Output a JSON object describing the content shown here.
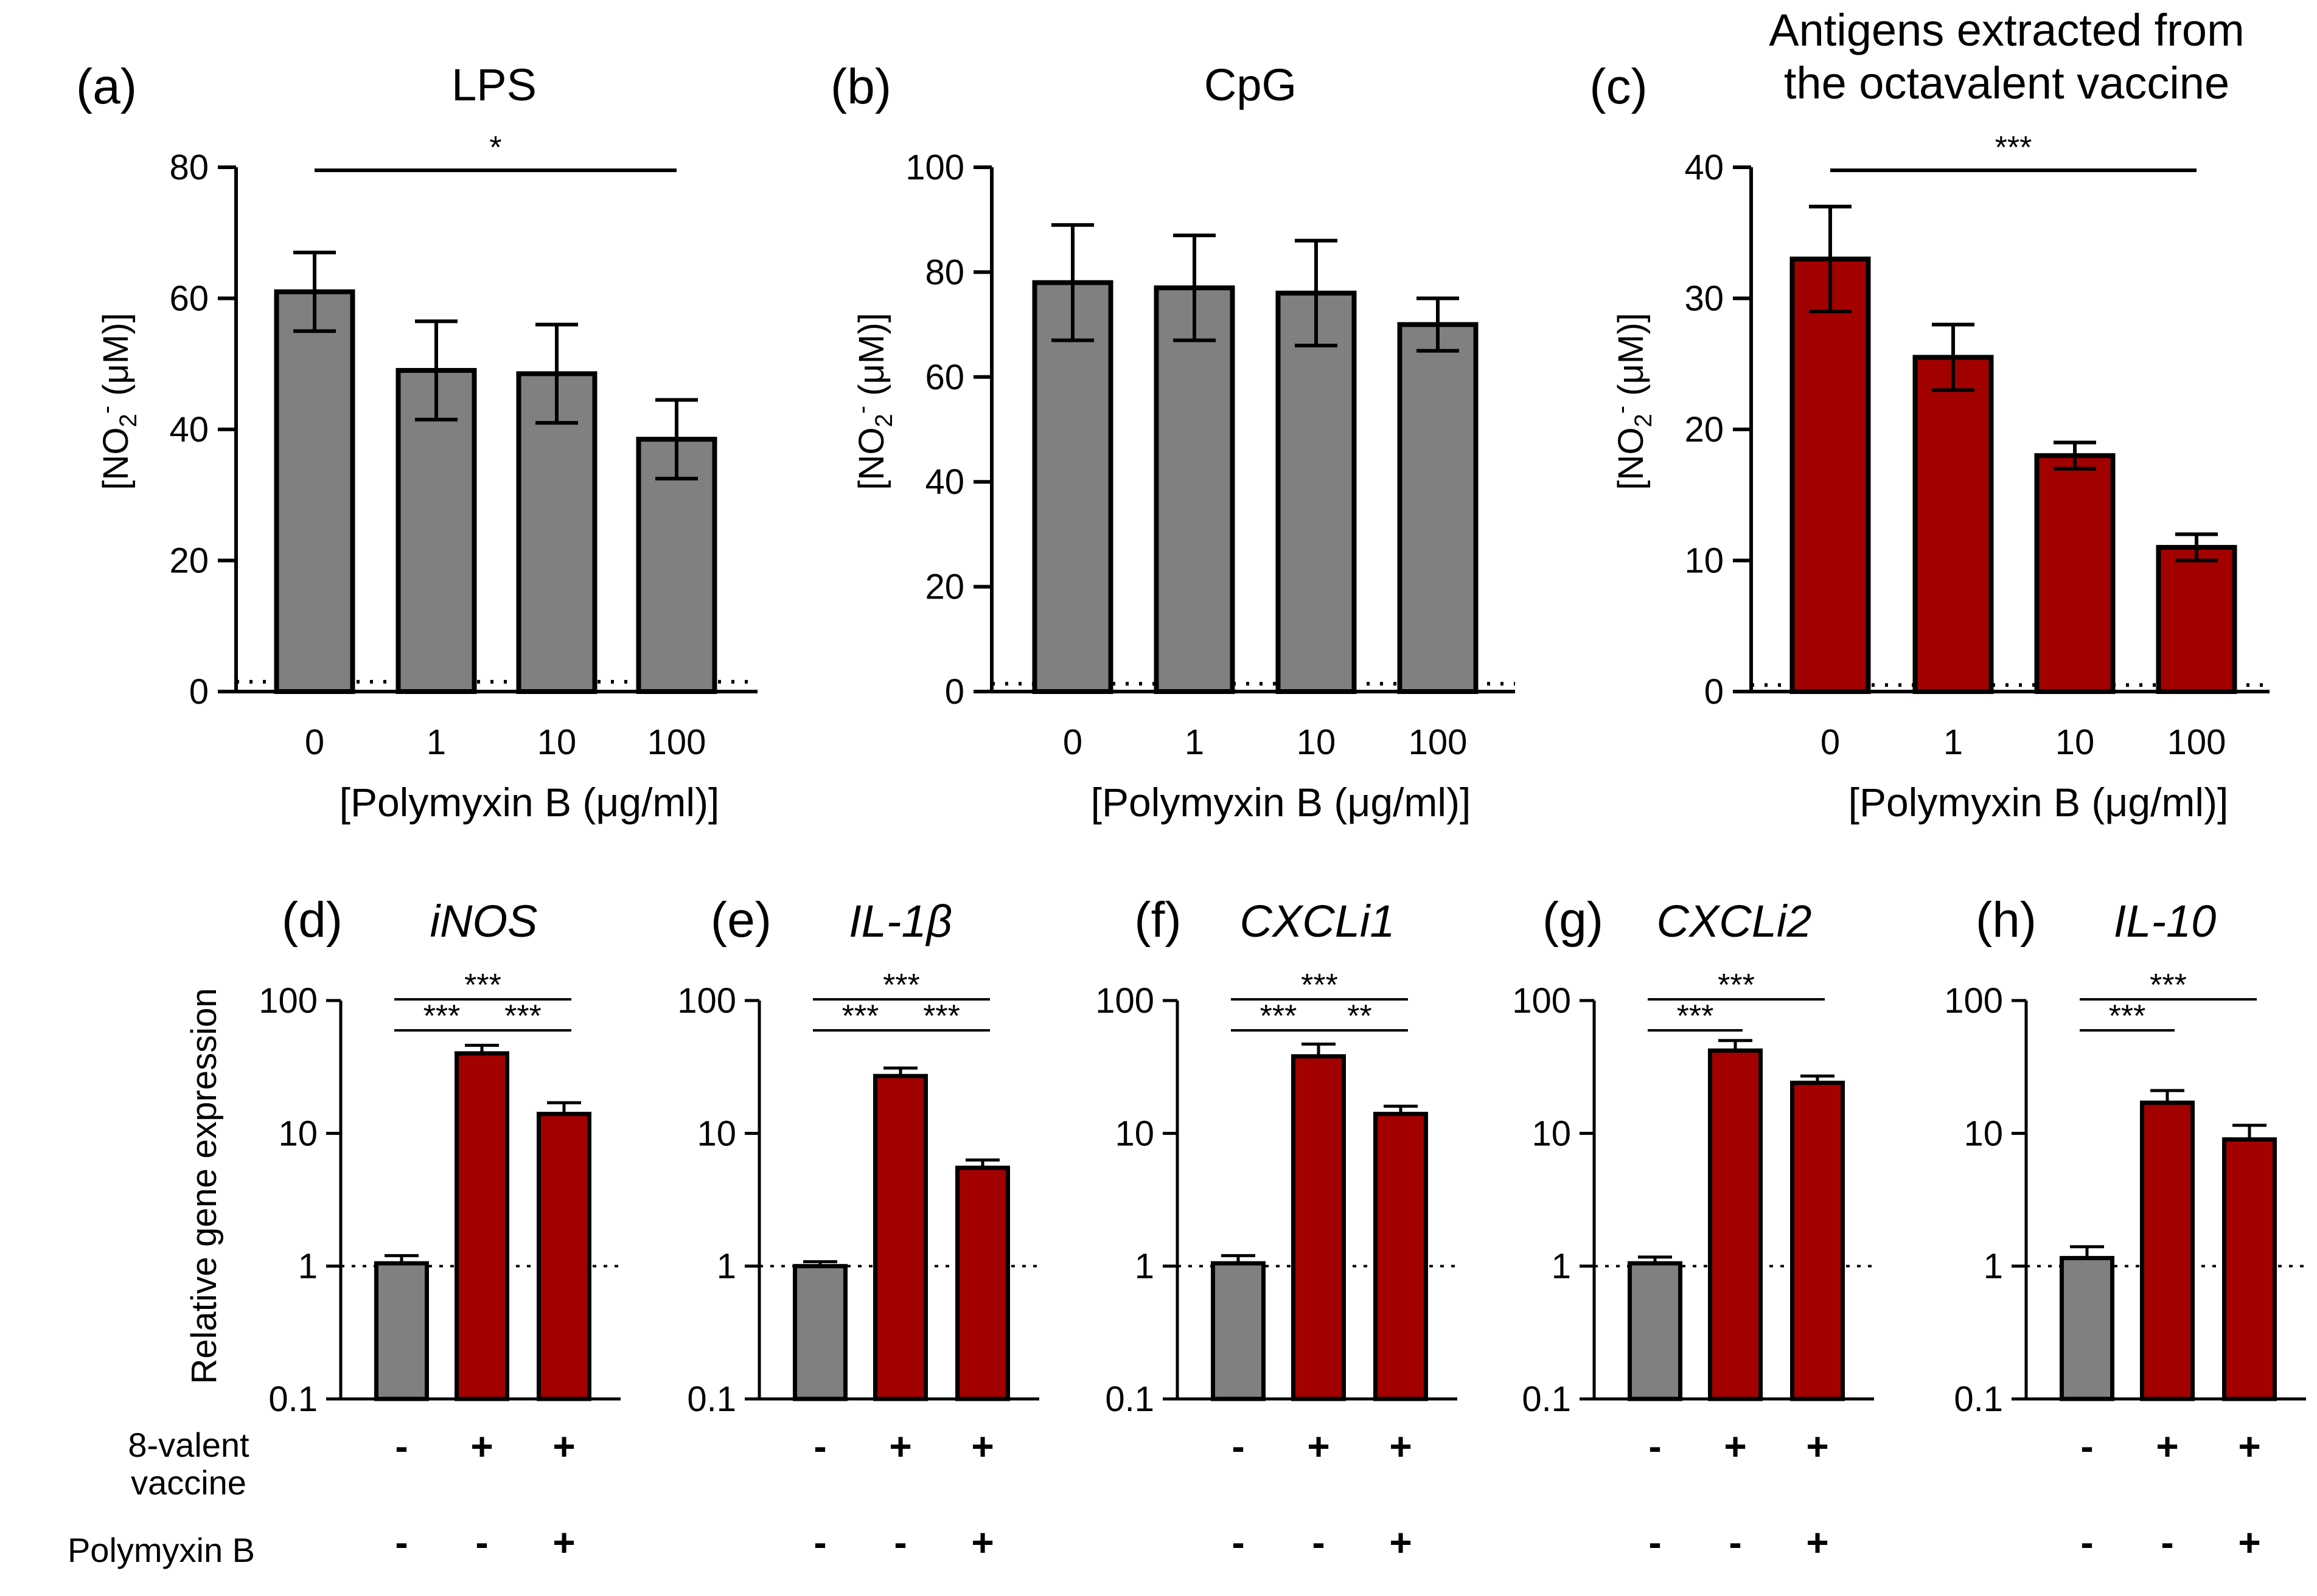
{
  "chart_data": [
    {
      "type": "bar",
      "panel": "(a)",
      "title": "LPS",
      "categories": [
        "0",
        "1",
        "10",
        "100"
      ],
      "values": [
        61,
        49,
        48.5,
        38.5
      ],
      "error": [
        6,
        7.5,
        7.5,
        6
      ],
      "bar_color": "#808080",
      "ylim": [
        0,
        80
      ],
      "yticks": [
        "0",
        "20",
        "40",
        "60",
        "80"
      ],
      "ylabel": "[NO2- (μM)]",
      "xlabel": "[Polymyxin B  (μg/ml)]",
      "baseline": 1.5,
      "significance": [
        {
          "from": 0,
          "to": 3,
          "label": "*"
        }
      ]
    },
    {
      "type": "bar",
      "panel": "(b)",
      "title": "CpG",
      "categories": [
        "0",
        "1",
        "10",
        "100"
      ],
      "values": [
        78,
        77,
        76,
        70
      ],
      "error": [
        11,
        10,
        10,
        5
      ],
      "bar_color": "#808080",
      "ylim": [
        0,
        100
      ],
      "yticks": [
        "0",
        "20",
        "40",
        "60",
        "80",
        "100"
      ],
      "ylabel": "[NO2- (μM)]",
      "xlabel": "[Polymyxin B  (μg/ml)]",
      "baseline": 1.5,
      "significance": []
    },
    {
      "type": "bar",
      "panel": "(c)",
      "title": "Antigens extracted from",
      "title2": "the octavalent vaccine",
      "categories": [
        "0",
        "1",
        "10",
        "100"
      ],
      "values": [
        33,
        25.5,
        18,
        11
      ],
      "error": [
        4,
        2.5,
        1,
        1
      ],
      "bar_color": "#a30000",
      "ylim": [
        0,
        40
      ],
      "yticks": [
        "0",
        "10",
        "20",
        "30",
        "40"
      ],
      "ylabel": "[NO2- (μM)]",
      "xlabel": "[Polymyxin B  (μg/ml)]",
      "baseline": 0.5,
      "significance": [
        {
          "from": 0,
          "to": 3,
          "label": "***"
        }
      ]
    },
    {
      "type": "bar",
      "log": true,
      "panel": "(d)",
      "title": "iNOS",
      "values": [
        1.05,
        40,
        14
      ],
      "error": [
        0.15,
        6,
        3
      ],
      "ylim": [
        0.1,
        100
      ],
      "yticks": [
        "0.1",
        "1",
        "10",
        "100"
      ],
      "significance": [
        {
          "from": 0,
          "to": 2,
          "label": "***",
          "level": 0
        },
        {
          "from": 0,
          "to": 1,
          "label": "***",
          "level": 1
        },
        {
          "from": 1,
          "to": 2,
          "label": "***",
          "level": 1
        }
      ]
    },
    {
      "type": "bar",
      "log": true,
      "panel": "(e)",
      "title": "IL-1β",
      "values": [
        1.0,
        27,
        5.5
      ],
      "error": [
        0.08,
        4,
        0.8
      ],
      "ylim": [
        0.1,
        100
      ],
      "yticks": [
        "0.1",
        "1",
        "10",
        "100"
      ],
      "significance": [
        {
          "from": 0,
          "to": 2,
          "label": "***",
          "level": 0
        },
        {
          "from": 0,
          "to": 1,
          "label": "***",
          "level": 1
        },
        {
          "from": 1,
          "to": 2,
          "label": "***",
          "level": 1
        }
      ]
    },
    {
      "type": "bar",
      "log": true,
      "panel": "(f)",
      "title": "CXCLi1",
      "values": [
        1.05,
        38,
        14
      ],
      "error": [
        0.15,
        9,
        2
      ],
      "ylim": [
        0.1,
        100
      ],
      "yticks": [
        "0.1",
        "1",
        "10",
        "100"
      ],
      "significance": [
        {
          "from": 0,
          "to": 2,
          "label": "***",
          "level": 0
        },
        {
          "from": 0,
          "to": 1,
          "label": "***",
          "level": 1
        },
        {
          "from": 1,
          "to": 2,
          "label": "**",
          "level": 1
        }
      ]
    },
    {
      "type": "bar",
      "log": true,
      "panel": "(g)",
      "title": "CXCLi2",
      "values": [
        1.05,
        42,
        24
      ],
      "error": [
        0.12,
        8,
        3
      ],
      "ylim": [
        0.1,
        100
      ],
      "yticks": [
        "0.1",
        "1",
        "10",
        "100"
      ],
      "significance": [
        {
          "from": 0,
          "to": 2,
          "label": "***",
          "level": 0
        },
        {
          "from": 0,
          "to": 1,
          "label": "***",
          "level": 1
        }
      ]
    },
    {
      "type": "bar",
      "log": true,
      "panel": "(h)",
      "title": "IL-10",
      "values": [
        1.15,
        17,
        9
      ],
      "error": [
        0.25,
        4,
        2.5
      ],
      "ylim": [
        0.1,
        100
      ],
      "yticks": [
        "0.1",
        "1",
        "10",
        "100"
      ],
      "significance": [
        {
          "from": 0,
          "to": 2,
          "label": "***",
          "level": 0
        },
        {
          "from": 0,
          "to": 1,
          "label": "***",
          "level": 1
        }
      ]
    }
  ],
  "bottom": {
    "ylabel": "Relative gene expression",
    "bar_colors": [
      "#808080",
      "#a30000",
      "#a30000"
    ],
    "row_vaccine_label_1": "8-valent",
    "row_vaccine_label_2": "vaccine",
    "row_polymyxin_label": "Polymyxin B",
    "vaccine_signs": [
      "-",
      "+",
      "+"
    ],
    "polymyxin_signs": [
      "-",
      "-",
      "+"
    ]
  }
}
